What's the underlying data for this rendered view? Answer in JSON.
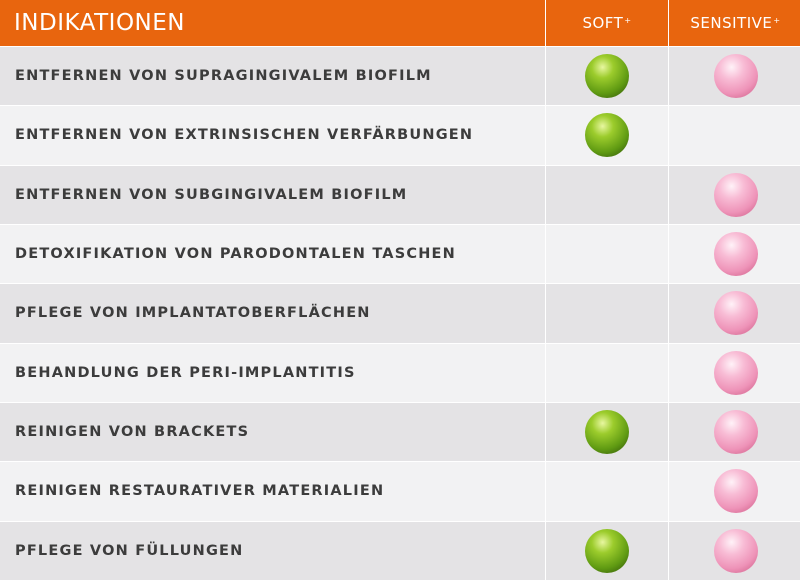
{
  "header": {
    "title": "INDIKATIONEN",
    "columns": [
      {
        "label": "SOFT",
        "sup": "+",
        "color": "green"
      },
      {
        "label": "SENSITIVE",
        "sup": "+",
        "color": "pink"
      }
    ]
  },
  "rows": [
    {
      "label": "ENTFERNEN VON SUPRAGINGIVALEM BIOFILM",
      "marks": [
        true,
        true
      ]
    },
    {
      "label": "ENTFERNEN VON EXTRINSISCHEN VERFÄRBUNGEN",
      "marks": [
        true,
        false
      ]
    },
    {
      "label": "ENTFERNEN VON SUBGINGIVALEM BIOFILM",
      "marks": [
        false,
        true
      ]
    },
    {
      "label": "DETOXIFIKATION VON PARODONTALEN TASCHEN",
      "marks": [
        false,
        true
      ]
    },
    {
      "label": "PFLEGE VON IMPLANTATOBERFLÄCHEN",
      "marks": [
        false,
        true
      ]
    },
    {
      "label": "BEHANDLUNG DER PERI-IMPLANTITIS",
      "marks": [
        false,
        true
      ]
    },
    {
      "label": "REINIGEN VON BRACKETS",
      "marks": [
        true,
        true
      ]
    },
    {
      "label": "REINIGEN RESTAURATIVER MATERIALIEN",
      "marks": [
        false,
        true
      ]
    },
    {
      "label": "PFLEGE VON FÜLLUNGEN",
      "marks": [
        true,
        true
      ]
    }
  ]
}
